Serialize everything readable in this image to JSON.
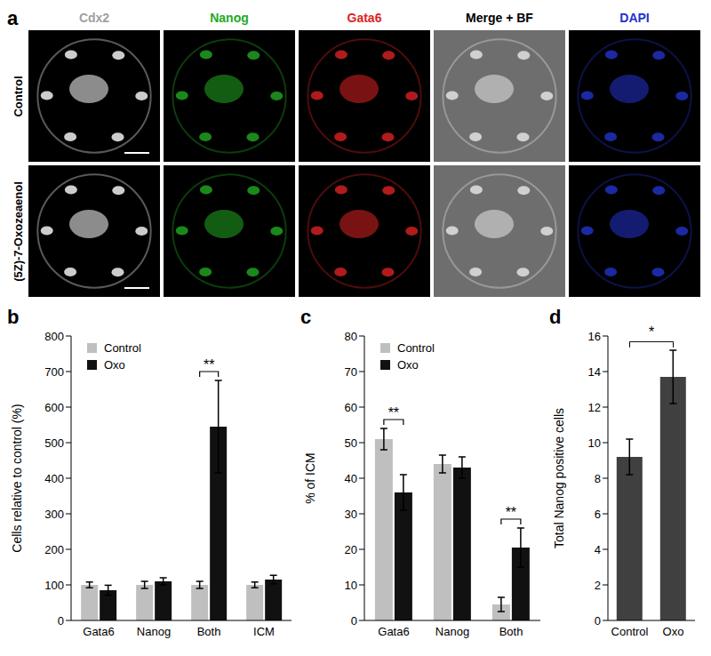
{
  "panel_a": {
    "label": "a",
    "rows": [
      "Control",
      "(5Z)-7-Oxozeaenol"
    ],
    "columns": [
      {
        "title": "Cdx2",
        "color": "#a0a0a0"
      },
      {
        "title": "Nanog",
        "color": "#22aa22"
      },
      {
        "title": "Gata6",
        "color": "#dd2222"
      },
      {
        "title": "Merge + BF",
        "color": "#000000"
      },
      {
        "title": "DAPI",
        "color": "#2233cc"
      }
    ]
  },
  "chart_data": [
    {
      "panel_label": "b",
      "type": "bar",
      "categories": [
        "Gata6",
        "Nanog",
        "Both",
        "ICM"
      ],
      "series": [
        {
          "name": "Control",
          "color": "#bfbfbf",
          "values": [
            100,
            100,
            100,
            100
          ],
          "errors": [
            8,
            10,
            10,
            8
          ]
        },
        {
          "name": "Oxo",
          "color": "#111111",
          "values": [
            85,
            110,
            545,
            115
          ],
          "errors": [
            14,
            10,
            130,
            12
          ]
        }
      ],
      "y_label": "Cells relative to control (%)",
      "ylim": [
        0,
        800
      ],
      "yticks": [
        0,
        100,
        200,
        300,
        400,
        500,
        600,
        700,
        800
      ],
      "legend": "upper left",
      "annotations": [
        {
          "category": "Both",
          "text": "**"
        }
      ]
    },
    {
      "panel_label": "c",
      "type": "bar",
      "categories": [
        "Gata6",
        "Nanog",
        "Both"
      ],
      "series": [
        {
          "name": "Control",
          "color": "#bfbfbf",
          "values": [
            51,
            44,
            4.5
          ],
          "errors": [
            3,
            2.5,
            2
          ]
        },
        {
          "name": "Oxo",
          "color": "#111111",
          "values": [
            36,
            43,
            20.5
          ],
          "errors": [
            5,
            3,
            5.5
          ]
        }
      ],
      "y_label": "% of ICM",
      "ylim": [
        0,
        80
      ],
      "yticks": [
        0,
        10,
        20,
        30,
        40,
        50,
        60,
        70,
        80
      ],
      "legend": "upper left",
      "annotations": [
        {
          "category": "Gata6",
          "text": "**"
        },
        {
          "category": "Both",
          "text": "**"
        }
      ]
    },
    {
      "panel_label": "d",
      "type": "bar",
      "categories": [
        "Control",
        "Oxo"
      ],
      "values": [
        9.2,
        13.7
      ],
      "errors": [
        1,
        1.5
      ],
      "color": "#404040",
      "y_label": "Total Nanog positive cells",
      "ylim": [
        0,
        16
      ],
      "yticks": [
        0,
        2,
        4,
        6,
        8,
        10,
        12,
        14,
        16
      ],
      "annotations": [
        {
          "from": "Control",
          "to": "Oxo",
          "text": "*"
        }
      ]
    }
  ]
}
